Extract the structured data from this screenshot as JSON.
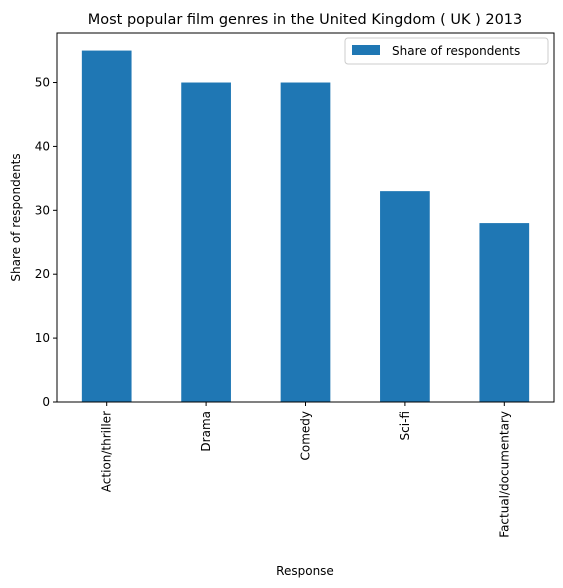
{
  "chart_data": {
    "type": "bar",
    "title": "Most popular film genres in the United Kingdom ( UK ) 2013",
    "xlabel": "Response",
    "ylabel": "Share of respondents",
    "categories": [
      "Action/thriller",
      "Drama",
      "Comedy",
      "Sci-fi",
      "Factual/documentary"
    ],
    "series": [
      {
        "name": "Share of respondents",
        "values": [
          55,
          50,
          50,
          33,
          28
        ],
        "color": "#1f77b4"
      }
    ],
    "ylim": [
      0,
      57.75
    ],
    "yticks": [
      0,
      10,
      20,
      30,
      40,
      50
    ],
    "grid": false,
    "legend_position": "top-right"
  }
}
